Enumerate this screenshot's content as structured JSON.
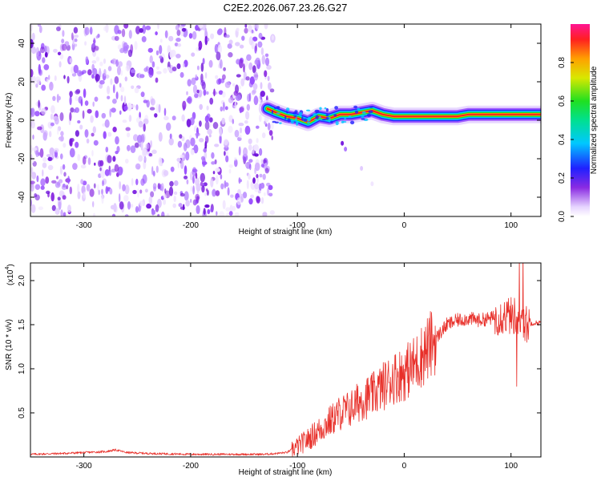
{
  "title": "C2E2.2026.067.23.26.G27",
  "chart_data": [
    {
      "type": "heatmap",
      "name": "spectrogram",
      "xlabel": "Height of straight line (km)",
      "ylabel": "Frequency (Hz)",
      "xlim": [
        -350,
        128
      ],
      "ylim": [
        -50,
        50
      ],
      "xticks": [
        -300,
        -200,
        -100,
        0,
        100
      ],
      "yticks": [
        -40,
        -20,
        0,
        20,
        40
      ],
      "noise_region_x": [
        -350,
        -123
      ],
      "ridge": {
        "x": [
          -128,
          -120,
          -110,
          -100,
          -90,
          -80,
          -70,
          -60,
          -50,
          -40,
          -30,
          -20,
          -10,
          0,
          10,
          20,
          30,
          40,
          50,
          60,
          70,
          80,
          90,
          100,
          110,
          128
        ],
        "y": [
          6,
          4,
          2,
          1,
          -1,
          2,
          1,
          3,
          3,
          4,
          5,
          3,
          2,
          2,
          2,
          2,
          2,
          2,
          2,
          3,
          3,
          3,
          3,
          3,
          3,
          3
        ]
      },
      "colorbar": {
        "label": "Normalized spectral amplitude",
        "range": [
          0,
          1
        ],
        "ticks": [
          "0.0",
          "0.2",
          "0.4",
          "0.6",
          "0.8"
        ]
      }
    },
    {
      "type": "line",
      "name": "snr",
      "xlabel": "Height of straight line (km)",
      "ylabel": "SNR (10 * v/v)",
      "scale_label": "(x10",
      "scale_exp": "4",
      "xlim": [
        -350,
        128
      ],
      "ylim": [
        0,
        2.2
      ],
      "xticks": [
        -300,
        -200,
        -100,
        0,
        100
      ],
      "yticks": [
        "0.5",
        "1.0",
        "1.5",
        "2.0"
      ],
      "color": "#e8302a",
      "x": [
        -350,
        -320,
        -300,
        -280,
        -270,
        -260,
        -240,
        -200,
        -160,
        -130,
        -110,
        -100,
        -90,
        -80,
        -70,
        -60,
        -50,
        -40,
        -30,
        -20,
        -10,
        0,
        10,
        20,
        30,
        40,
        50,
        60,
        70,
        80,
        90,
        100,
        105,
        110,
        115,
        120,
        128
      ],
      "y": [
        0.03,
        0.04,
        0.05,
        0.06,
        0.08,
        0.05,
        0.04,
        0.03,
        0.03,
        0.03,
        0.05,
        0.12,
        0.2,
        0.3,
        0.4,
        0.5,
        0.55,
        0.65,
        0.7,
        0.8,
        0.9,
        0.95,
        1.05,
        1.2,
        1.35,
        1.5,
        1.55,
        1.57,
        1.55,
        1.57,
        1.6,
        1.6,
        1.6,
        1.55,
        1.5,
        1.52,
        1.52
      ]
    }
  ]
}
